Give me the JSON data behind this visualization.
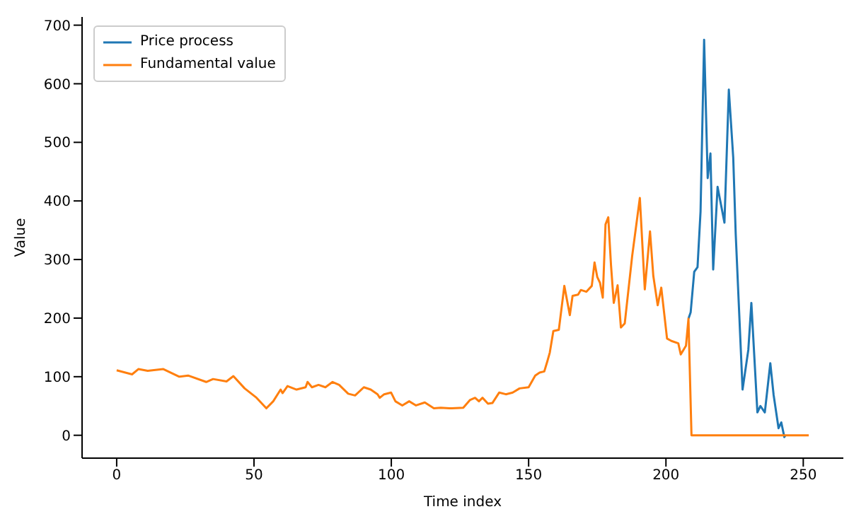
{
  "chart_data": {
    "type": "line",
    "xlabel": "Time index",
    "ylabel": "Value",
    "xlim": [
      -12.6,
      264.6
    ],
    "ylim": [
      -39,
      714
    ],
    "xticks": [
      0,
      50,
      100,
      150,
      200,
      250
    ],
    "yticks": [
      0,
      100,
      200,
      300,
      400,
      500,
      600,
      700
    ],
    "legend": "top left",
    "grid": false,
    "marker": "none",
    "line_style": "solid",
    "series": [
      {
        "name": "Price process",
        "color": "#1f77b4",
        "x": [
          208.2,
          209,
          210.3,
          211.5,
          212.6,
          213.9,
          215.2,
          216.2,
          217.2,
          218.8,
          221.3,
          222.9,
          224.5,
          225.4,
          227.9,
          230,
          231.1,
          233.3,
          234.4,
          236,
          238,
          239.2,
          241,
          242,
          243.1,
          243.5
        ],
        "values": [
          199,
          210,
          279,
          287,
          382,
          675,
          439,
          481,
          283,
          424,
          363,
          590,
          474,
          344,
          78,
          146,
          226,
          39,
          50,
          39,
          123,
          69,
          12,
          22,
          -3,
          0
        ]
      },
      {
        "name": "Fundamental value",
        "color": "#ff7f0e",
        "x": [
          0,
          5.6,
          7.9,
          11.3,
          17,
          22.8,
          26,
          32.6,
          35.1,
          40,
          42.5,
          46.6,
          50.7,
          54.5,
          57,
          59.7,
          60.4,
          62.2,
          65.5,
          68.8,
          69.5,
          71.1,
          73.5,
          76,
          78.6,
          81,
          84.3,
          86.8,
          90,
          92.5,
          95,
          95.8,
          97.4,
          99.9,
          101.5,
          104,
          106.5,
          109,
          112.2,
          115.5,
          118,
          121.2,
          122,
          126.2,
          128.6,
          130.5,
          131.9,
          133.2,
          135.2,
          136.8,
          139.3,
          141.7,
          144.2,
          146.7,
          150,
          152.4,
          154,
          155.7,
          156.8,
          157.7,
          159,
          161,
          163,
          164,
          165,
          166,
          168,
          169,
          171,
          173,
          174,
          175,
          176,
          177,
          178,
          179,
          180,
          181,
          182.4,
          183.6,
          185,
          187.7,
          190.5,
          192.3,
          194.2,
          195.4,
          197,
          198.3,
          200.4,
          202,
          204.5,
          205.4,
          207.3,
          208.2,
          209.3,
          252
        ],
        "values": [
          111,
          104,
          113,
          110,
          113,
          100,
          102,
          91,
          96,
          92,
          101,
          80,
          65,
          46,
          58,
          78,
          72,
          84,
          78,
          82,
          91,
          82,
          86,
          82,
          91,
          86,
          71,
          68,
          82,
          78,
          70,
          64,
          70,
          73,
          58,
          51,
          58,
          51,
          56,
          46,
          47,
          46,
          46,
          47,
          60,
          64,
          58,
          64,
          54,
          55,
          73,
          70,
          73,
          80,
          82,
          102,
          107,
          109,
          126,
          141,
          178,
          180,
          255,
          230,
          205,
          238,
          240,
          248,
          245,
          255,
          295,
          270,
          260,
          235,
          360,
          372,
          290,
          226,
          256,
          184,
          191,
          306,
          405,
          249,
          348,
          272,
          222,
          252,
          165,
          161,
          157,
          138,
          153,
          199,
          0,
          0
        ]
      }
    ]
  }
}
